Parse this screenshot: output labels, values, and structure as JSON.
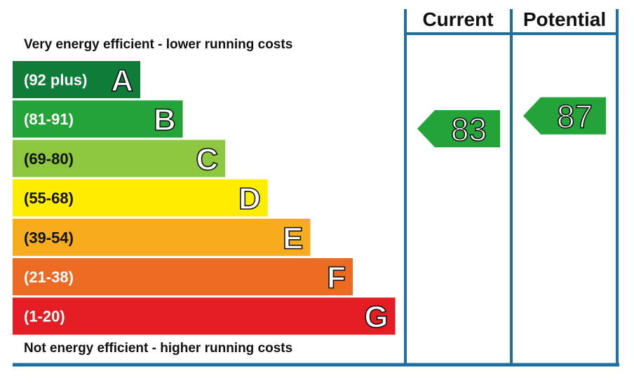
{
  "chart_data": {
    "type": "bar",
    "top_label": "Very energy efficient - lower running costs",
    "bottom_label": "Not energy efficient - higher running costs",
    "bands": [
      {
        "letter": "A",
        "range": "(92 plus)",
        "min": 92,
        "max": 100,
        "color": "#107c3a"
      },
      {
        "letter": "B",
        "range": "(81-91)",
        "min": 81,
        "max": 91,
        "color": "#23a338"
      },
      {
        "letter": "C",
        "range": "(69-80)",
        "min": 69,
        "max": 80,
        "color": "#8dc63f"
      },
      {
        "letter": "D",
        "range": "(55-68)",
        "min": 55,
        "max": 68,
        "color": "#ffed00"
      },
      {
        "letter": "E",
        "range": "(39-54)",
        "min": 39,
        "max": 54,
        "color": "#f7ac1d"
      },
      {
        "letter": "F",
        "range": "(21-38)",
        "min": 21,
        "max": 38,
        "color": "#ed6a23"
      },
      {
        "letter": "G",
        "range": "(1-20)",
        "min": 1,
        "max": 20,
        "color": "#e31d23"
      }
    ],
    "ratings": [
      {
        "header": "Current",
        "value": 83,
        "band": "B",
        "color": "#23a338"
      },
      {
        "header": "Potential",
        "value": 87,
        "band": "B",
        "color": "#23a338"
      }
    ],
    "frame_color": "#1f6fa1"
  }
}
